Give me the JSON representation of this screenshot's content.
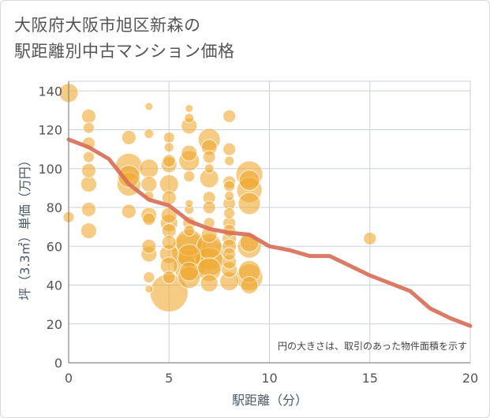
{
  "title_line1": "大阪府大阪市旭区新森の",
  "title_line2": "駅距離別中古マンション価格",
  "chart_data": {
    "type": "scatter",
    "title": "大阪府大阪市旭区新森の駅距離別中古マンション価格",
    "xlabel": "駅距離（分）",
    "ylabel": "坪（3.3㎡）単価（万円）",
    "xlim": [
      0,
      20
    ],
    "ylim": [
      0,
      145
    ],
    "x_ticks": [
      0,
      5,
      10,
      15,
      20
    ],
    "y_ticks": [
      0,
      20,
      40,
      60,
      80,
      100,
      120,
      140
    ],
    "grid": true,
    "legend": "none",
    "annotation": "円の大きさは、取引のあった物件面積を示す",
    "colors": {
      "bubble": "#f0a830",
      "trend": "#d87058",
      "grid": "#c8d2dc"
    },
    "bubbles": [
      {
        "x": 0,
        "y": 139,
        "r": 12
      },
      {
        "x": 0,
        "y": 75,
        "r": 7
      },
      {
        "x": 1,
        "y": 127,
        "r": 9
      },
      {
        "x": 1,
        "y": 121,
        "r": 7
      },
      {
        "x": 1,
        "y": 113,
        "r": 8
      },
      {
        "x": 1,
        "y": 106,
        "r": 7
      },
      {
        "x": 1,
        "y": 99,
        "r": 9
      },
      {
        "x": 1,
        "y": 92,
        "r": 10
      },
      {
        "x": 1,
        "y": 79,
        "r": 9
      },
      {
        "x": 1,
        "y": 68,
        "r": 10
      },
      {
        "x": 3,
        "y": 116,
        "r": 9
      },
      {
        "x": 3,
        "y": 101,
        "r": 17
      },
      {
        "x": 3,
        "y": 96,
        "r": 14
      },
      {
        "x": 3,
        "y": 92,
        "r": 15
      },
      {
        "x": 3,
        "y": 78,
        "r": 9
      },
      {
        "x": 4,
        "y": 132,
        "r": 5
      },
      {
        "x": 4,
        "y": 118,
        "r": 6
      },
      {
        "x": 4,
        "y": 100,
        "r": 12
      },
      {
        "x": 4,
        "y": 92,
        "r": 10
      },
      {
        "x": 4,
        "y": 86,
        "r": 6
      },
      {
        "x": 4,
        "y": 76,
        "r": 10
      },
      {
        "x": 4,
        "y": 74,
        "r": 8
      },
      {
        "x": 4,
        "y": 60,
        "r": 9
      },
      {
        "x": 4,
        "y": 56,
        "r": 10
      },
      {
        "x": 4,
        "y": 44,
        "r": 7
      },
      {
        "x": 4,
        "y": 38,
        "r": 5
      },
      {
        "x": 5,
        "y": 116,
        "r": 7
      },
      {
        "x": 5,
        "y": 111,
        "r": 6
      },
      {
        "x": 5,
        "y": 104,
        "r": 8
      },
      {
        "x": 5,
        "y": 102,
        "r": 10
      },
      {
        "x": 5,
        "y": 92,
        "r": 12
      },
      {
        "x": 5,
        "y": 85,
        "r": 9
      },
      {
        "x": 5,
        "y": 76,
        "r": 10
      },
      {
        "x": 5,
        "y": 72,
        "r": 11
      },
      {
        "x": 5,
        "y": 68,
        "r": 9
      },
      {
        "x": 5,
        "y": 62,
        "r": 9
      },
      {
        "x": 5,
        "y": 56,
        "r": 12
      },
      {
        "x": 5,
        "y": 50,
        "r": 11
      },
      {
        "x": 5,
        "y": 44,
        "r": 8
      },
      {
        "x": 5,
        "y": 36,
        "r": 24
      },
      {
        "x": 6,
        "y": 131,
        "r": 5
      },
      {
        "x": 6,
        "y": 126,
        "r": 6
      },
      {
        "x": 6,
        "y": 122,
        "r": 10
      },
      {
        "x": 6,
        "y": 108,
        "r": 10
      },
      {
        "x": 6,
        "y": 104,
        "r": 13
      },
      {
        "x": 6,
        "y": 96,
        "r": 7
      },
      {
        "x": 6,
        "y": 82,
        "r": 5
      },
      {
        "x": 6,
        "y": 79,
        "r": 6
      },
      {
        "x": 6,
        "y": 72,
        "r": 8
      },
      {
        "x": 6,
        "y": 68,
        "r": 7
      },
      {
        "x": 6,
        "y": 62,
        "r": 17
      },
      {
        "x": 6,
        "y": 58,
        "r": 22
      },
      {
        "x": 6,
        "y": 55,
        "r": 15
      },
      {
        "x": 6,
        "y": 50,
        "r": 20
      },
      {
        "x": 6,
        "y": 47,
        "r": 12
      },
      {
        "x": 6,
        "y": 44,
        "r": 14
      },
      {
        "x": 7,
        "y": 115,
        "r": 14
      },
      {
        "x": 7,
        "y": 111,
        "r": 10
      },
      {
        "x": 7,
        "y": 106,
        "r": 8
      },
      {
        "x": 7,
        "y": 100,
        "r": 6
      },
      {
        "x": 7,
        "y": 95,
        "r": 12
      },
      {
        "x": 7,
        "y": 85,
        "r": 8
      },
      {
        "x": 7,
        "y": 80,
        "r": 8
      },
      {
        "x": 7,
        "y": 72,
        "r": 7
      },
      {
        "x": 7,
        "y": 66,
        "r": 10
      },
      {
        "x": 7,
        "y": 60,
        "r": 16
      },
      {
        "x": 7,
        "y": 56,
        "r": 20
      },
      {
        "x": 7,
        "y": 52,
        "r": 18
      },
      {
        "x": 7,
        "y": 48,
        "r": 15
      },
      {
        "x": 7,
        "y": 41,
        "r": 11
      },
      {
        "x": 8,
        "y": 127,
        "r": 8
      },
      {
        "x": 8,
        "y": 110,
        "r": 8
      },
      {
        "x": 8,
        "y": 104,
        "r": 6
      },
      {
        "x": 8,
        "y": 93,
        "r": 8
      },
      {
        "x": 8,
        "y": 91,
        "r": 7
      },
      {
        "x": 8,
        "y": 86,
        "r": 6
      },
      {
        "x": 8,
        "y": 82,
        "r": 8
      },
      {
        "x": 8,
        "y": 77,
        "r": 7
      },
      {
        "x": 8,
        "y": 72,
        "r": 8
      },
      {
        "x": 8,
        "y": 68,
        "r": 8
      },
      {
        "x": 8,
        "y": 64,
        "r": 9
      },
      {
        "x": 8,
        "y": 60,
        "r": 9
      },
      {
        "x": 8,
        "y": 56,
        "r": 8
      },
      {
        "x": 8,
        "y": 52,
        "r": 9
      },
      {
        "x": 8,
        "y": 48,
        "r": 10
      },
      {
        "x": 8,
        "y": 42,
        "r": 12
      },
      {
        "x": 9,
        "y": 97,
        "r": 17
      },
      {
        "x": 9,
        "y": 94,
        "r": 13
      },
      {
        "x": 9,
        "y": 89,
        "r": 16
      },
      {
        "x": 9,
        "y": 82,
        "r": 14
      },
      {
        "x": 9,
        "y": 62,
        "r": 12
      },
      {
        "x": 9,
        "y": 60,
        "r": 15
      },
      {
        "x": 9,
        "y": 47,
        "r": 14
      },
      {
        "x": 9,
        "y": 44,
        "r": 17
      },
      {
        "x": 9,
        "y": 40,
        "r": 11
      },
      {
        "x": 15,
        "y": 64,
        "r": 8
      }
    ],
    "trend_line": {
      "x": [
        0,
        1,
        2,
        3,
        4,
        5,
        6,
        7,
        8,
        9,
        10,
        11,
        12,
        13,
        14,
        15,
        16,
        17,
        18,
        19,
        20
      ],
      "y": [
        115,
        111,
        105,
        92,
        84,
        81,
        73,
        69,
        67,
        66,
        60,
        58,
        55,
        55,
        50,
        45,
        41,
        37,
        28,
        23,
        19
      ]
    }
  }
}
